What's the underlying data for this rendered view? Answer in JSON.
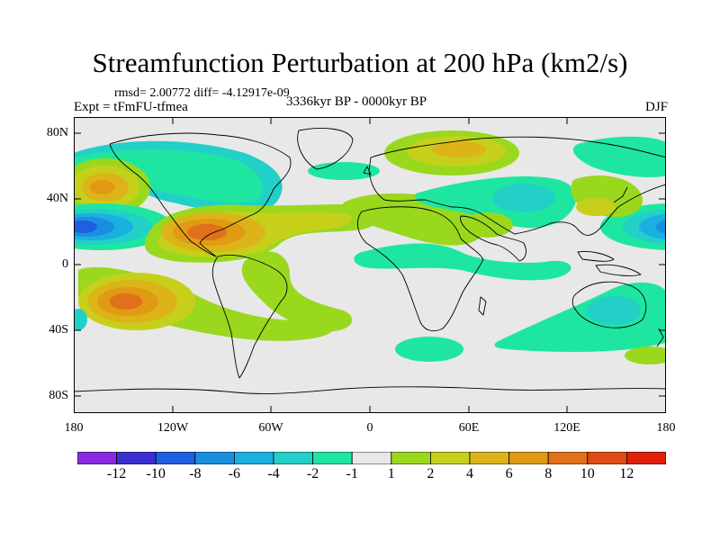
{
  "figure": {
    "title": "Streamfunction Perturbation at 200 hPa (km2/s)",
    "stats": "rmsd= 2.00772 diff= -4.12917e-09",
    "experiment": "Expt = tFmFU-tfmea",
    "period": "3336kyr BP - 0000kyr BP",
    "season": "DJF"
  },
  "axes": {
    "y_ticks": [
      "80N",
      "40N",
      "0",
      "40S",
      "80S"
    ],
    "x_ticks": [
      "180",
      "120W",
      "60W",
      "0",
      "60E",
      "120E",
      "180"
    ]
  },
  "colorbar": {
    "labels": [
      "-12",
      "-10",
      "-8",
      "-6",
      "-4",
      "-2",
      "-1",
      "1",
      "2",
      "4",
      "6",
      "8",
      "10",
      "12"
    ],
    "colors": [
      "#8a2be2",
      "#3b2fd4",
      "#1f5fe0",
      "#1a8fe0",
      "#1ab0e0",
      "#22d0c8",
      "#1ee6a0",
      "#e8e8e8",
      "#9ad81e",
      "#c6d01a",
      "#dcb41a",
      "#e09a14",
      "#e0701a",
      "#e04a14",
      "#e0200a"
    ]
  }
}
